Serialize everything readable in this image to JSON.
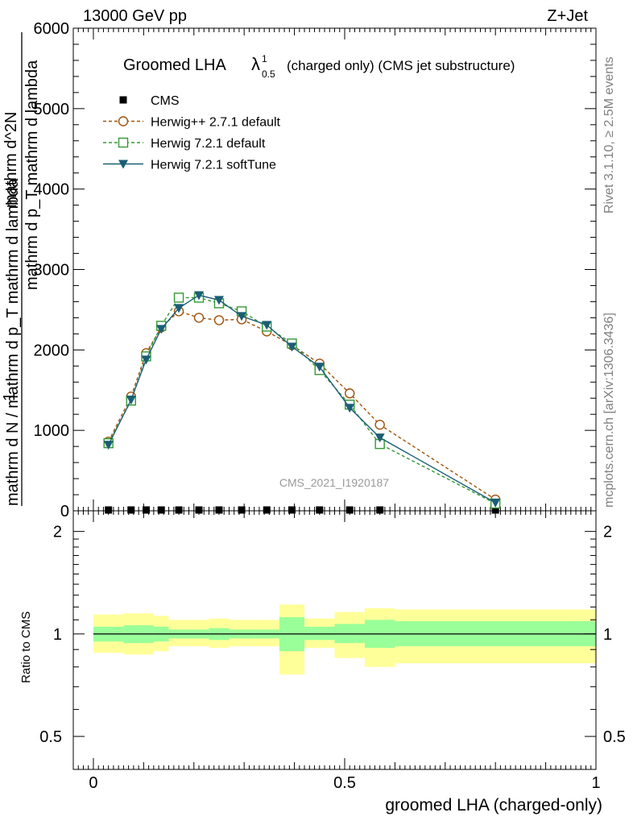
{
  "header": {
    "left": "13000 GeV pp",
    "right": "Z+Jet"
  },
  "side_text": {
    "rivet": "Rivet 3.1.10, ≥ 2.5M events",
    "mcplots": "mcplots.cern.ch [arXiv:1306.3436]"
  },
  "chart_data": [
    {
      "type": "line",
      "title_main": "Groomed LHA",
      "title_lambda": "λ",
      "title_sup": "1",
      "title_sub": "0.5",
      "title_rest": "(charged only) (CMS jet substructure)",
      "watermark": "CMS_2021_I1920187",
      "ylabel_num": "1",
      "ylabel_den": "mathrm d N / mathrm d p_T mathrm d lambda",
      "ylabel_top": "mathrm d^2N",
      "ylabel_mid": "mathrm d p_T mathrm d lambda",
      "xlim": [
        -0.04,
        1.0
      ],
      "ylim": [
        0,
        6000
      ],
      "y_ticks": [
        0,
        1000,
        2000,
        3000,
        4000,
        5000,
        6000
      ],
      "y_tick_labels": [
        "0",
        "1000",
        "2000",
        "3000",
        "4000",
        "5000",
        "6000"
      ],
      "legend_position": "top-left",
      "series": [
        {
          "name": "CMS",
          "color": "#000000",
          "marker": "filled-square",
          "x": [
            0.03,
            0.075,
            0.105,
            0.135,
            0.17,
            0.21,
            0.25,
            0.295,
            0.345,
            0.395,
            0.45,
            0.51,
            0.57,
            0.8
          ],
          "y": [
            0,
            0,
            0,
            0,
            0,
            0,
            0,
            0,
            0,
            0,
            0,
            0,
            0,
            0
          ]
        },
        {
          "name": "Herwig++ 2.7.1 default",
          "color": "#a0520a",
          "marker": "open-circle",
          "x": [
            0.03,
            0.075,
            0.105,
            0.135,
            0.17,
            0.21,
            0.25,
            0.295,
            0.345,
            0.395,
            0.45,
            0.51,
            0.57,
            0.8
          ],
          "y": [
            860,
            1420,
            1960,
            2280,
            2480,
            2400,
            2370,
            2380,
            2230,
            2060,
            1830,
            1460,
            1070,
            140
          ]
        },
        {
          "name": "Herwig 7.2.1 default",
          "color": "#339933",
          "marker": "open-square",
          "x": [
            0.03,
            0.075,
            0.105,
            0.135,
            0.17,
            0.21,
            0.25,
            0.295,
            0.345,
            0.395,
            0.45,
            0.51,
            0.57,
            0.8
          ],
          "y": [
            840,
            1370,
            1920,
            2300,
            2650,
            2650,
            2580,
            2480,
            2290,
            2080,
            1750,
            1320,
            830,
            90
          ]
        },
        {
          "name": "Herwig 7.2.1 softTune",
          "color": "#1a5e75",
          "marker": "filled-triangle-down",
          "x": [
            0.03,
            0.075,
            0.105,
            0.135,
            0.17,
            0.21,
            0.25,
            0.295,
            0.345,
            0.395,
            0.45,
            0.51,
            0.57,
            0.8
          ],
          "y": [
            820,
            1380,
            1880,
            2260,
            2520,
            2680,
            2620,
            2420,
            2310,
            2040,
            1790,
            1280,
            910,
            100
          ]
        }
      ]
    },
    {
      "type": "area",
      "ylabel": "Ratio to CMS",
      "xlabel": "groomed LHA (charged-only)",
      "xlim": [
        -0.04,
        1.0
      ],
      "ylim": [
        0.4,
        2.3
      ],
      "log_y": true,
      "y_ticks": [
        0.5,
        1,
        2
      ],
      "y_tick_labels": [
        "0.5",
        "1",
        "2"
      ],
      "x_ticks": [
        0,
        0.5,
        1
      ],
      "x_tick_labels": [
        "0",
        "0.5",
        "1"
      ],
      "reference_line": 1,
      "bands": {
        "colors": {
          "stat": "#99ff99",
          "total": "#ffff99"
        },
        "bins": [
          {
            "x0": 0.0,
            "x1": 0.06,
            "stat": [
              0.95,
              1.05
            ],
            "total": [
              0.88,
              1.14
            ]
          },
          {
            "x0": 0.06,
            "x1": 0.09,
            "stat": [
              0.94,
              1.06
            ],
            "total": [
              0.87,
              1.15
            ]
          },
          {
            "x0": 0.09,
            "x1": 0.12,
            "stat": [
              0.94,
              1.06
            ],
            "total": [
              0.87,
              1.15
            ]
          },
          {
            "x0": 0.12,
            "x1": 0.15,
            "stat": [
              0.95,
              1.05
            ],
            "total": [
              0.89,
              1.13
            ]
          },
          {
            "x0": 0.15,
            "x1": 0.19,
            "stat": [
              0.97,
              1.03
            ],
            "total": [
              0.92,
              1.1
            ]
          },
          {
            "x0": 0.19,
            "x1": 0.23,
            "stat": [
              0.97,
              1.03
            ],
            "total": [
              0.92,
              1.1
            ]
          },
          {
            "x0": 0.23,
            "x1": 0.27,
            "stat": [
              0.96,
              1.04
            ],
            "total": [
              0.91,
              1.11
            ]
          },
          {
            "x0": 0.27,
            "x1": 0.32,
            "stat": [
              0.97,
              1.03
            ],
            "total": [
              0.92,
              1.1
            ]
          },
          {
            "x0": 0.32,
            "x1": 0.37,
            "stat": [
              0.97,
              1.03
            ],
            "total": [
              0.92,
              1.1
            ]
          },
          {
            "x0": 0.37,
            "x1": 0.42,
            "stat": [
              0.89,
              1.12
            ],
            "total": [
              0.76,
              1.22
            ]
          },
          {
            "x0": 0.42,
            "x1": 0.48,
            "stat": [
              0.96,
              1.05
            ],
            "total": [
              0.91,
              1.11
            ]
          },
          {
            "x0": 0.48,
            "x1": 0.54,
            "stat": [
              0.94,
              1.07
            ],
            "total": [
              0.85,
              1.16
            ]
          },
          {
            "x0": 0.54,
            "x1": 0.6,
            "stat": [
              0.91,
              1.1
            ],
            "total": [
              0.8,
              1.19
            ]
          },
          {
            "x0": 0.6,
            "x1": 1.0,
            "stat": [
              0.92,
              1.09
            ],
            "total": [
              0.82,
              1.18
            ]
          }
        ]
      }
    }
  ]
}
